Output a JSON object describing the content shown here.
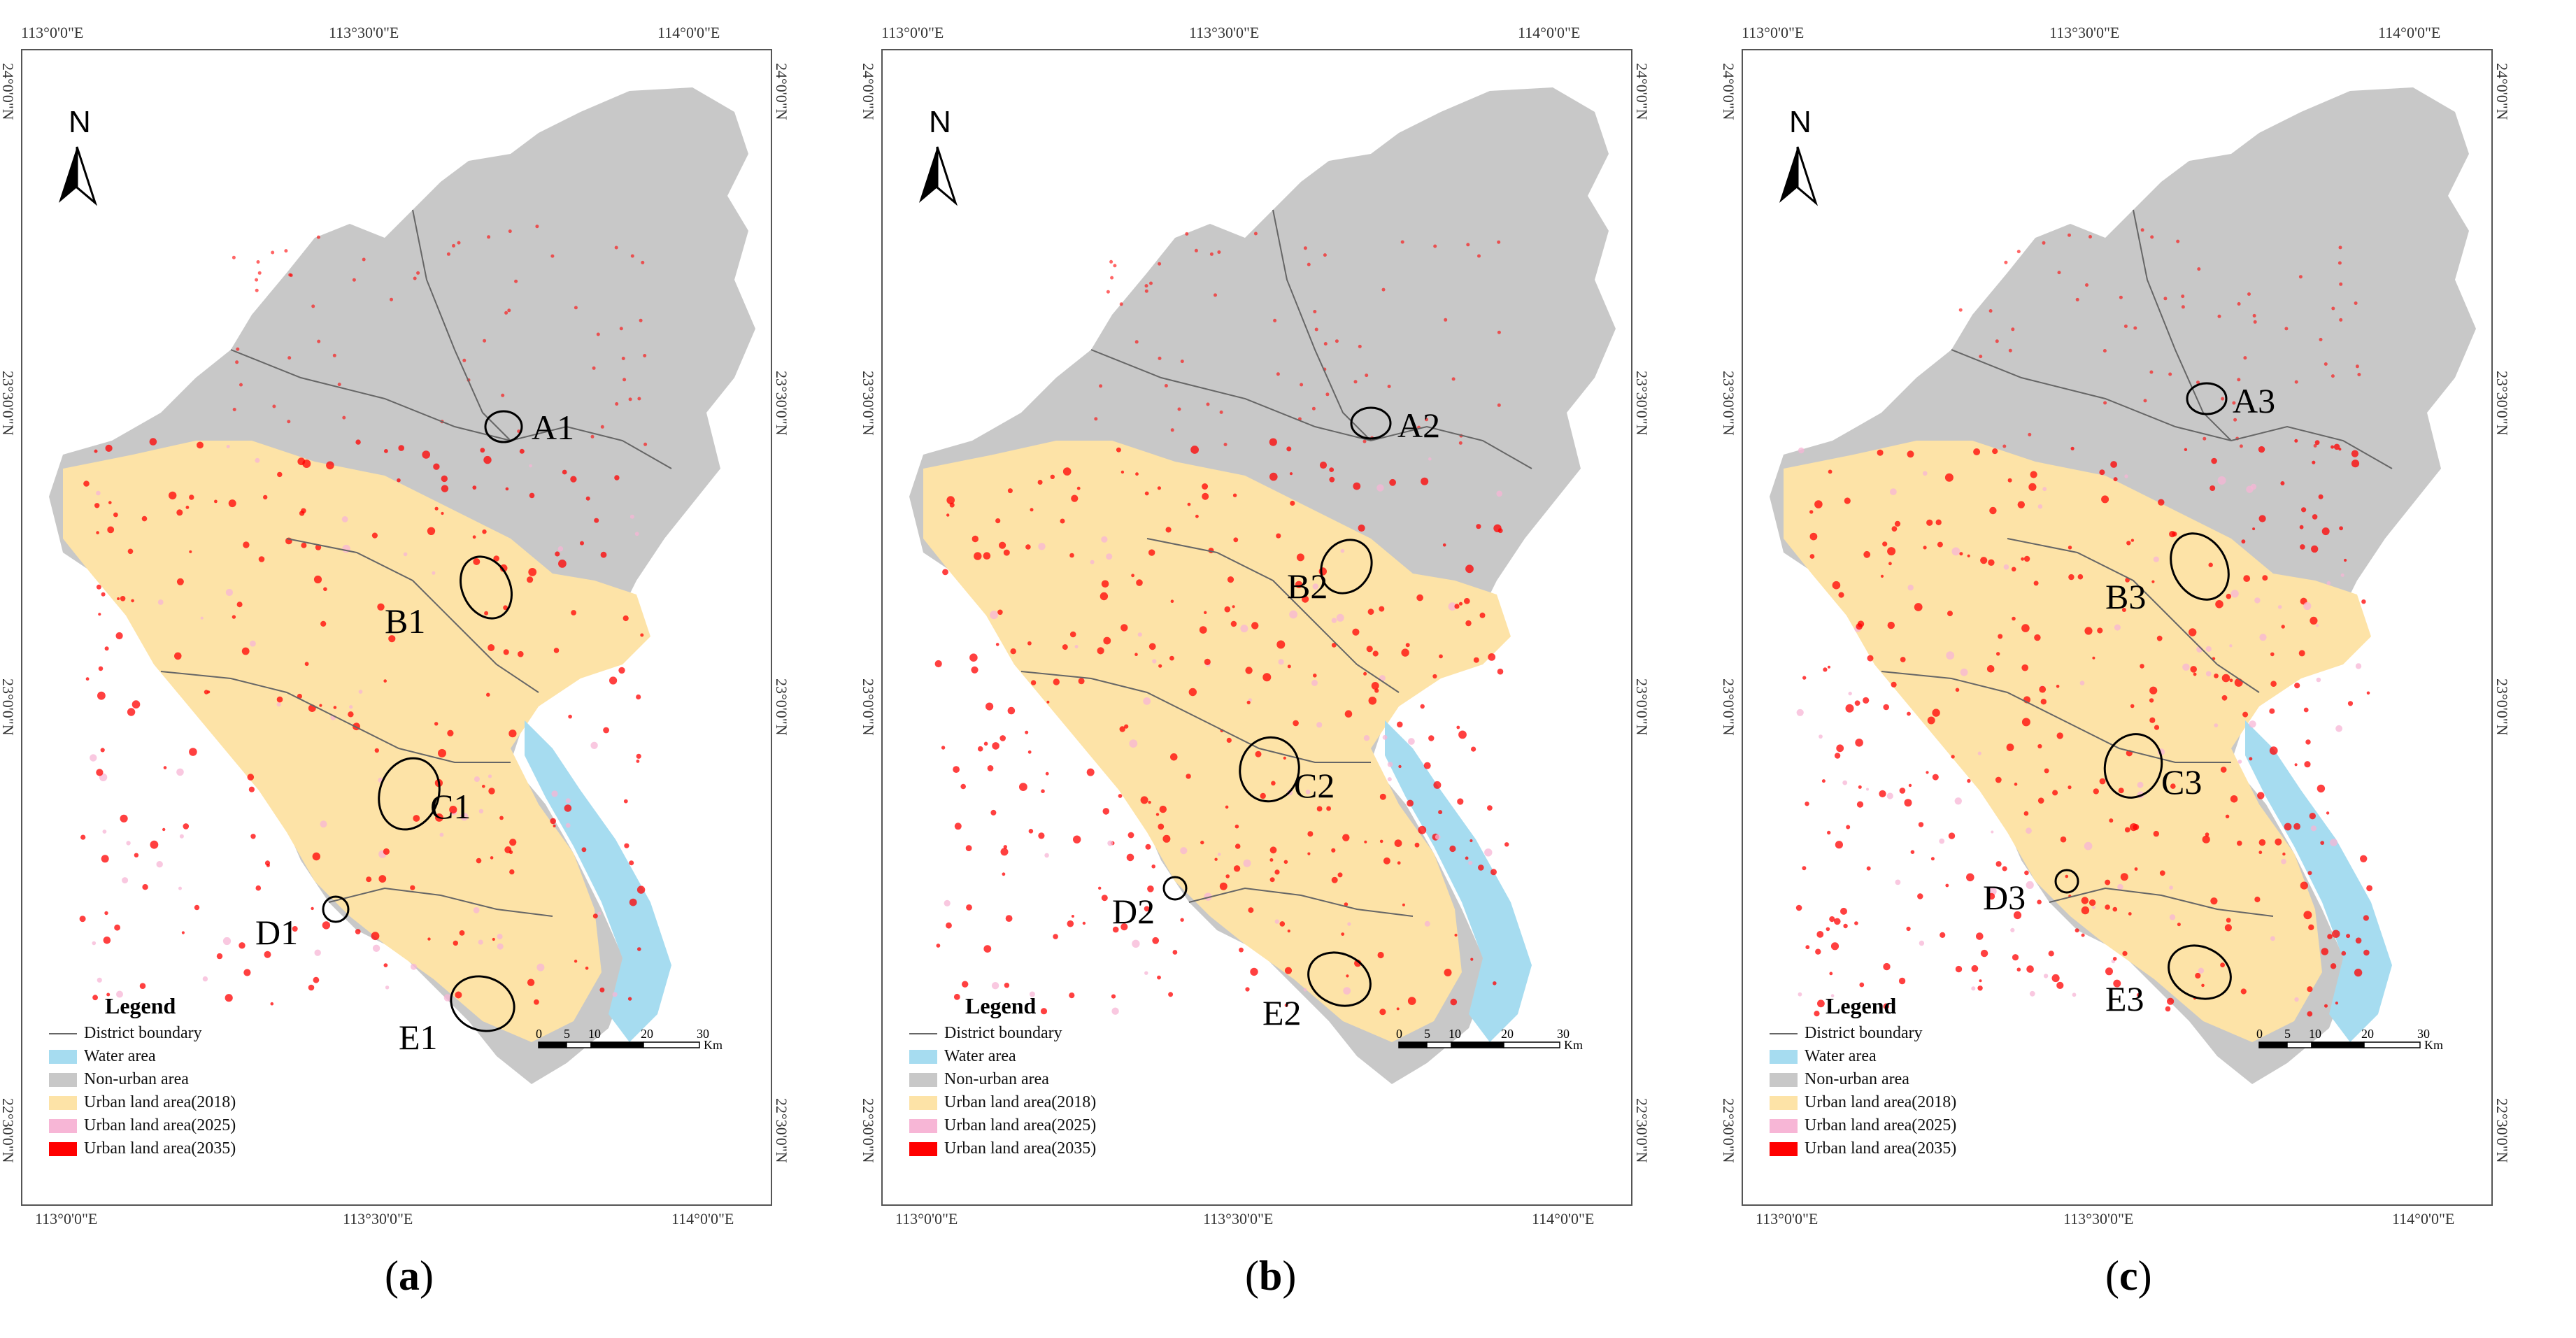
{
  "panels": [
    {
      "id": "a",
      "caption_letter": "a",
      "ticks": {
        "top": [
          "113°0'0\"E",
          "113°30'0\"E",
          "114°0'0\"E"
        ],
        "bottom": [
          "113°0'0\"E",
          "113°30'0\"E",
          "114°0'0\"E"
        ],
        "left": [
          "24°0'0\"N",
          "23°30'0\"N",
          "23°0'0\"N",
          "22°30'0\"N"
        ],
        "right": [
          "24°0'0\"N",
          "23°30'0\"N",
          "23°0'0\"N",
          "22°30'0\"N"
        ]
      },
      "labels": [
        "A1",
        "B1",
        "C1",
        "D1",
        "E1"
      ]
    },
    {
      "id": "b",
      "caption_letter": "b",
      "ticks": {
        "top": [
          "113°0'0\"E",
          "113°30'0\"E",
          "114°0'0\"E"
        ],
        "bottom": [
          "113°0'0\"E",
          "113°30'0\"E",
          "114°0'0\"E"
        ],
        "left": [
          "24°0'0\"N",
          "23°30'0\"N",
          "23°0'0\"N",
          "22°30'0\"N"
        ],
        "right": [
          "24°0'0\"N",
          "23°30'0\"N",
          "23°0'0\"N",
          "22°30'0\"N"
        ]
      },
      "labels": [
        "A2",
        "B2",
        "C2",
        "D2",
        "E2"
      ]
    },
    {
      "id": "c",
      "caption_letter": "c",
      "ticks": {
        "top": [
          "113°0'0\"E",
          "113°30'0\"E",
          "114°0'0\"E"
        ],
        "bottom": [
          "113°0'0\"E",
          "113°30'0\"E",
          "114°0'0\"E"
        ],
        "left": [
          "24°0'0\"N",
          "23°30'0\"N",
          "23°0'0\"N",
          "22°30'0\"N"
        ],
        "right": [
          "24°0'0\"N",
          "23°30'0\"N",
          "23°0'0\"N",
          "22°30'0\"N"
        ]
      },
      "labels": [
        "A3",
        "B3",
        "C3",
        "D3",
        "E3"
      ]
    }
  ],
  "north_label": "N",
  "legend": {
    "title": "Legend",
    "items": [
      {
        "label": "District boundary",
        "color": "#666666",
        "kind": "line"
      },
      {
        "label": "Water area",
        "color": "#a6dcf0",
        "kind": "fill"
      },
      {
        "label": "Non-urban area",
        "color": "#c8c8c8",
        "kind": "fill"
      },
      {
        "label": "Urban land area(2018)",
        "color": "#fde3a7",
        "kind": "fill"
      },
      {
        "label": "Urban land area(2025)",
        "color": "#f7b6d6",
        "kind": "fill"
      },
      {
        "label": "Urban land area(2035)",
        "color": "#ff0000",
        "kind": "fill"
      }
    ]
  },
  "scale": {
    "ticks": [
      "0",
      "5",
      "10",
      "20",
      "30"
    ],
    "unit": "Km"
  }
}
